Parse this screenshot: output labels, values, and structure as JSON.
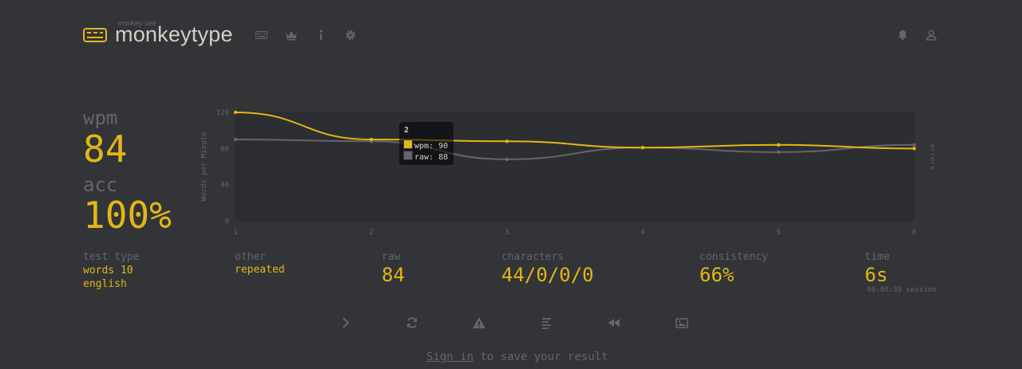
{
  "header": {
    "logo_sub": "monkey see",
    "logo_text": "monkeytype",
    "nav_icons": [
      "keyboard-icon",
      "crown-icon",
      "info-icon",
      "gear-icon"
    ],
    "account_icons": [
      "bell-icon",
      "user-icon"
    ]
  },
  "stats": {
    "wpm_label": "wpm",
    "wpm_value": "84",
    "acc_label": "acc",
    "acc_value": "100%"
  },
  "details": {
    "test_type_label": "test type",
    "test_type_value1": "words 10",
    "test_type_value2": "english",
    "other_label": "other",
    "other_value": "repeated",
    "raw_label": "raw",
    "raw_value": "84",
    "characters_label": "characters",
    "characters_value": "44/0/0/0",
    "consistency_label": "consistency",
    "consistency_value": "66%",
    "time_label": "time",
    "time_value": "6s",
    "session_text": "00:08:39 session"
  },
  "chart_data": {
    "type": "line",
    "x": [
      1,
      2,
      3,
      4,
      5,
      6
    ],
    "series": [
      {
        "name": "wpm",
        "values": [
          120,
          90,
          88,
          81,
          84,
          80
        ],
        "color": "#e2b714"
      },
      {
        "name": "raw",
        "values": [
          90,
          88,
          68,
          81,
          76,
          84
        ],
        "color": "#646669"
      }
    ],
    "ylabel": "Words per Minute",
    "y2label": "Errors",
    "ylim": [
      0,
      120
    ],
    "yticks": [
      "0",
      "40",
      "80",
      "120"
    ],
    "xticks": [
      "1",
      "2",
      "3",
      "4",
      "5",
      "6"
    ],
    "grid": true,
    "tooltip": {
      "title": "2",
      "wpm_text": "wpm: 90",
      "raw_text": "raw: 88"
    }
  },
  "actions": [
    "next-test",
    "restart-test",
    "report-test",
    "words-history",
    "replay",
    "screenshot"
  ],
  "footer": {
    "signin_link": "Sign in",
    "signin_rest": " to save your result"
  },
  "colors": {
    "background": "#323437",
    "main": "#e2b714",
    "sub": "#646669",
    "text": "#d1d0c5"
  }
}
